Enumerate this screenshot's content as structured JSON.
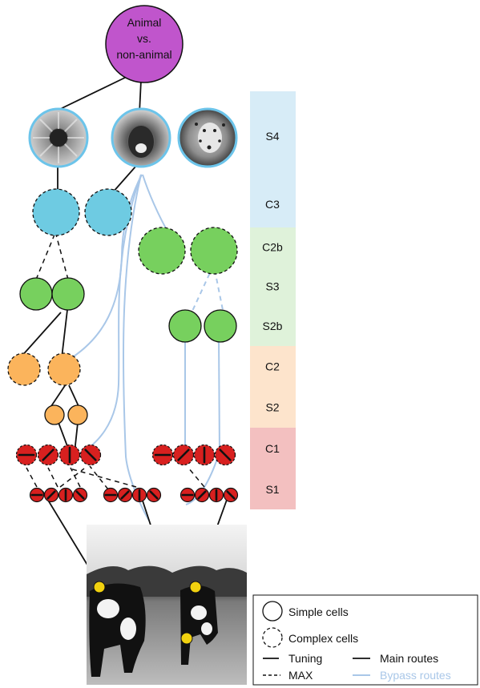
{
  "top_node": {
    "line1": "Animal",
    "line2": "vs.",
    "line3": "non-animal"
  },
  "s4_images": [
    {
      "name": "sunflower"
    },
    {
      "name": "lion"
    },
    {
      "name": "leopard"
    }
  ],
  "layers": [
    {
      "label": "S4",
      "color": "#d7ecf7"
    },
    {
      "label": "C3",
      "color": "#d7ecf7"
    },
    {
      "label": "C2b",
      "color": "#dff2da"
    },
    {
      "label": "S3",
      "color": "#dff2da"
    },
    {
      "label": "S2b",
      "color": "#dff2da"
    },
    {
      "label": "C2",
      "color": "#fde4cc"
    },
    {
      "label": "S2",
      "color": "#fde4cc"
    },
    {
      "label": "C1",
      "color": "#f3c0c0"
    },
    {
      "label": "S1",
      "color": "#f3c0c0"
    }
  ],
  "legend": {
    "simple": "Simple cells",
    "complex": "Complex cells",
    "tuning": "Tuning",
    "max": "MAX",
    "main": "Main routes",
    "bypass": "Bypass routes"
  },
  "colors": {
    "purple": "#c055cc",
    "blue_unit": "#6ecbe2",
    "green_unit": "#77d05e",
    "orange_unit": "#fbb45c",
    "red_unit": "#d8201f",
    "bypass_line": "#a9c7e8",
    "image_ring": "#6cc4ea",
    "probe": "#f1d10f"
  }
}
